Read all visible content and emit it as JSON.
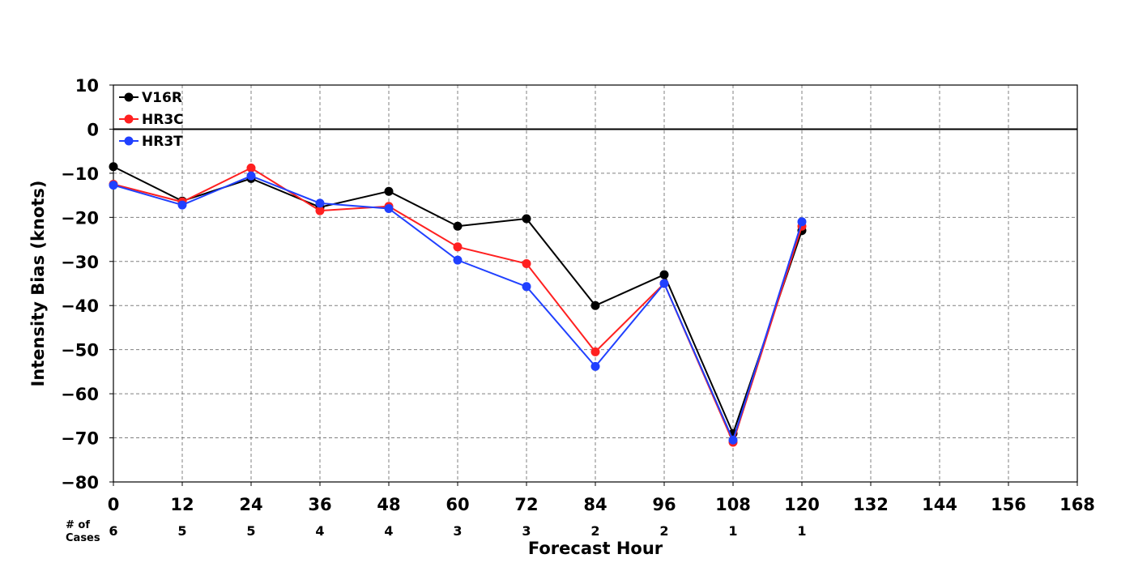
{
  "chart_data": {
    "type": "line",
    "title": "",
    "xlabel": "Forecast Hour",
    "ylabel": "Intensity Bias (knots)",
    "xlim": [
      0,
      168
    ],
    "ylim": [
      -80,
      10
    ],
    "x_ticks": [
      0,
      12,
      24,
      36,
      48,
      60,
      72,
      84,
      96,
      108,
      120,
      132,
      144,
      156,
      168
    ],
    "y_ticks": [
      10,
      0,
      -10,
      -20,
      -30,
      -40,
      -50,
      -60,
      -70,
      -80
    ],
    "grid": true,
    "zero_line": true,
    "legend_position": "top-left",
    "x": [
      0,
      12,
      24,
      36,
      48,
      60,
      72,
      84,
      96,
      108,
      120
    ],
    "series": [
      {
        "name": "V16R",
        "color": "#000000",
        "values": [
          -8.5,
          -16.3,
          -11.2,
          -17.7,
          -14.1,
          -22.0,
          -20.3,
          -40.0,
          -33.0,
          -69.0,
          -23.0
        ]
      },
      {
        "name": "HR3C",
        "color": "#ff2020",
        "values": [
          -12.5,
          -16.5,
          -8.8,
          -18.5,
          -17.5,
          -26.7,
          -30.5,
          -50.5,
          -35.0,
          -71.0,
          -22.0
        ]
      },
      {
        "name": "HR3T",
        "color": "#2040ff",
        "values": [
          -12.7,
          -17.2,
          -10.6,
          -16.8,
          -18.0,
          -29.7,
          -35.7,
          -53.8,
          -35.0,
          -70.5,
          -21.0
        ]
      }
    ],
    "cases_label": [
      "# of",
      "Cases"
    ],
    "cases": [
      6,
      5,
      5,
      4,
      4,
      3,
      3,
      2,
      2,
      1,
      1
    ]
  }
}
